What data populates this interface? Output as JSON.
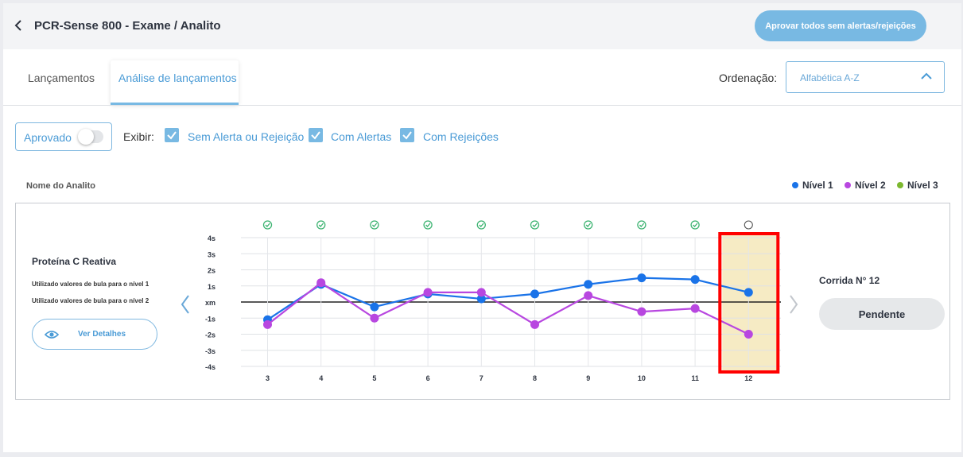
{
  "header": {
    "title": "PCR-Sense 800 - Exame / Analito",
    "approve_all_label": "Aprovar todos sem alertas/rejeições"
  },
  "tabs": [
    {
      "label": "Lançamentos",
      "active": false
    },
    {
      "label": "Análise de lançamentos",
      "active": true
    }
  ],
  "ordering": {
    "label": "Ordenação:",
    "value": "Alfabética A-Z"
  },
  "filters": {
    "approved_label": "Aprovado",
    "approved_on": false,
    "show_label": "Exibir:",
    "checkboxes": [
      {
        "label": "Sem Alerta ou Rejeição",
        "checked": true
      },
      {
        "label": "Com Alertas",
        "checked": true
      },
      {
        "label": "Com Rejeições",
        "checked": true
      }
    ]
  },
  "list": {
    "column_header": "Nome do Analito",
    "legend": [
      {
        "label": "Nível 1",
        "color": "#1a73e8"
      },
      {
        "label": "Nível 2",
        "color": "#b847e0"
      },
      {
        "label": "Nível 3",
        "color": "#7cb82f"
      }
    ]
  },
  "analyte": {
    "name": "Proteína C Reativa",
    "notes": [
      "Utilizado valores de bula para o nível 1",
      "Utilizado valores de bula para o nível 2"
    ],
    "details_label": "Ver Detalhes",
    "run_label": "Corrida N° 12",
    "status_label": "Pendente"
  },
  "chart_data": {
    "type": "line",
    "x": [
      "3",
      "4",
      "5",
      "6",
      "7",
      "8",
      "9",
      "10",
      "11",
      "12"
    ],
    "y_ticks": [
      "4s",
      "3s",
      "2s",
      "1s",
      "xm",
      "-1s",
      "-2s",
      "-3s",
      "-4s"
    ],
    "ylim": [
      -4,
      4
    ],
    "series": [
      {
        "name": "Nível 1",
        "color": "#1a73e8",
        "values": [
          -1.1,
          1.1,
          -0.3,
          0.5,
          0.2,
          0.5,
          1.1,
          1.5,
          1.4,
          0.6
        ]
      },
      {
        "name": "Nível 2",
        "color": "#b847e0",
        "values": [
          -1.4,
          1.2,
          -1.0,
          0.6,
          0.6,
          -1.4,
          0.4,
          -0.6,
          -0.4,
          -2.0
        ]
      }
    ],
    "status_per_run": [
      "ok",
      "ok",
      "ok",
      "ok",
      "ok",
      "ok",
      "ok",
      "ok",
      "ok",
      "pending"
    ],
    "highlighted_run": "12",
    "highlight_color": "#f6ebc4",
    "highlight_border": "#ff0000",
    "ok_color": "#3cb371"
  }
}
